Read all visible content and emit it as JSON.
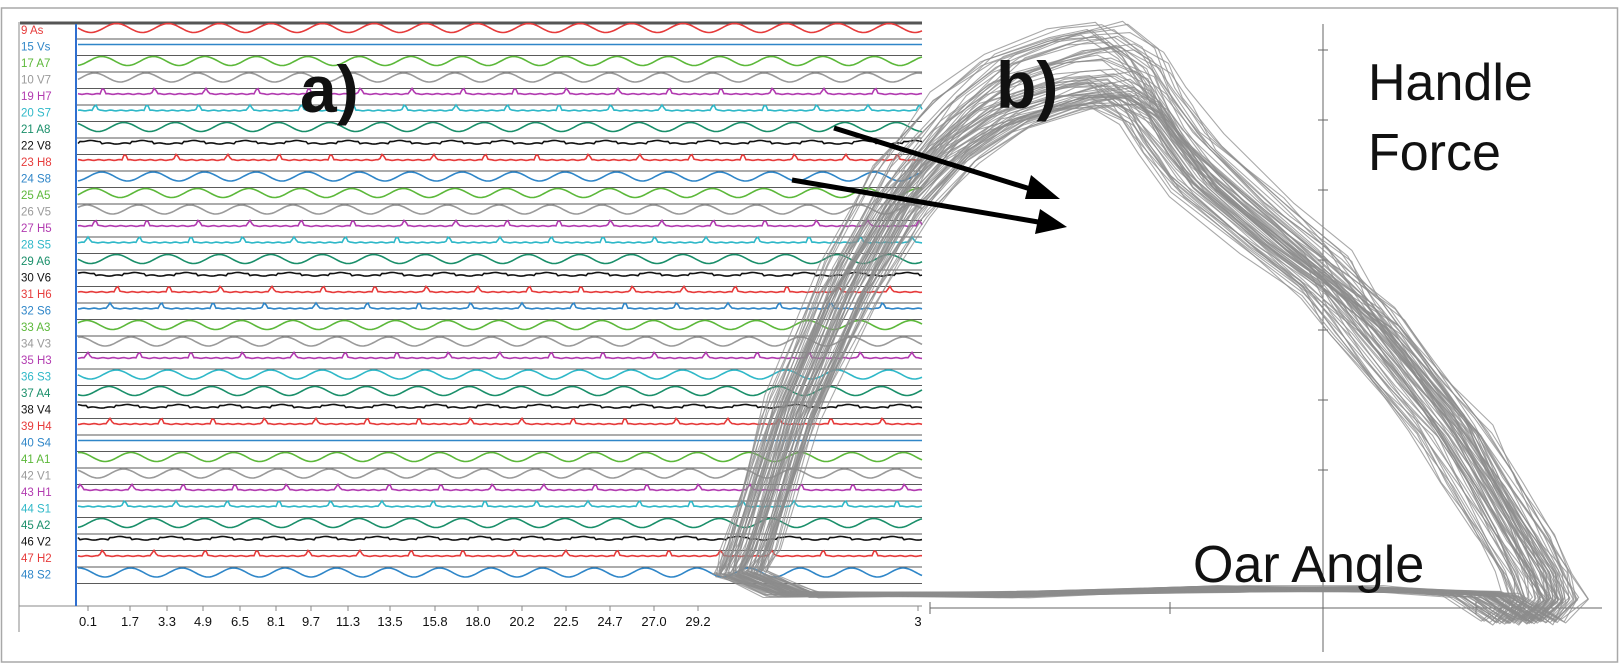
{
  "panel_a": {
    "label": "a)",
    "time_ticks": [
      "0.1",
      "1.7",
      "3.3",
      "4.9",
      "6.5",
      "8.1",
      "9.7",
      "11.3",
      "13.5",
      "15.8",
      "18.0",
      "20.2",
      "22.5",
      "24.7",
      "27.0",
      "29.2",
      "3"
    ]
  },
  "panel_b": {
    "label": "b)",
    "ylabel_line1": "Handle",
    "ylabel_line2": "Force",
    "xlabel": "Oar Angle"
  },
  "chart_data": [
    {
      "type": "line",
      "title": "",
      "xlabel": "",
      "ylabel": "",
      "x_ticks": [
        "0.1",
        "1.7",
        "3.3",
        "4.9",
        "6.5",
        "8.1",
        "9.7",
        "11.3",
        "13.5",
        "15.8",
        "18.0",
        "20.2",
        "22.5",
        "24.7",
        "27.0",
        "29.2",
        "3"
      ],
      "xlim": [
        0.1,
        30.5
      ],
      "grid": false,
      "series": [
        {
          "name": "9 As",
          "color": "#e63b3b",
          "kind": "sine"
        },
        {
          "name": "15 Vs",
          "color": "#2f86c8",
          "kind": "flat"
        },
        {
          "name": "17 A7",
          "color": "#5cb83a",
          "kind": "sine"
        },
        {
          "name": "10 V7",
          "color": "#9a9a9a",
          "kind": "sine"
        },
        {
          "name": "19 H7",
          "color": "#b23bb0",
          "kind": "bump"
        },
        {
          "name": "20 S7",
          "color": "#2fb8c8",
          "kind": "bump"
        },
        {
          "name": "21 A8",
          "color": "#1a8f6a",
          "kind": "sine"
        },
        {
          "name": "22 V8",
          "color": "#111111",
          "kind": "plateau"
        },
        {
          "name": "23 H8",
          "color": "#e63b3b",
          "kind": "bump"
        },
        {
          "name": "24 S8",
          "color": "#2f86c8",
          "kind": "sine"
        },
        {
          "name": "25 A5",
          "color": "#5cb83a",
          "kind": "sine"
        },
        {
          "name": "26 V5",
          "color": "#9a9a9a",
          "kind": "sine"
        },
        {
          "name": "27 H5",
          "color": "#b23bb0",
          "kind": "bump"
        },
        {
          "name": "28 S5",
          "color": "#2fb8c8",
          "kind": "bump"
        },
        {
          "name": "29 A6",
          "color": "#1a8f6a",
          "kind": "sine"
        },
        {
          "name": "30 V6",
          "color": "#111111",
          "kind": "plateau"
        },
        {
          "name": "31 H6",
          "color": "#e63b3b",
          "kind": "bump"
        },
        {
          "name": "32 S6",
          "color": "#2f86c8",
          "kind": "bump"
        },
        {
          "name": "33 A3",
          "color": "#5cb83a",
          "kind": "sine"
        },
        {
          "name": "34 V3",
          "color": "#9a9a9a",
          "kind": "sine"
        },
        {
          "name": "35 H3",
          "color": "#b23bb0",
          "kind": "bump"
        },
        {
          "name": "36 S3",
          "color": "#2fb8c8",
          "kind": "sine"
        },
        {
          "name": "37 A4",
          "color": "#1a8f6a",
          "kind": "sine"
        },
        {
          "name": "38 V4",
          "color": "#111111",
          "kind": "plateau"
        },
        {
          "name": "39 H4",
          "color": "#e63b3b",
          "kind": "bump"
        },
        {
          "name": "40 S4",
          "color": "#2f86c8",
          "kind": "flat"
        },
        {
          "name": "41 A1",
          "color": "#5cb83a",
          "kind": "sine"
        },
        {
          "name": "42 V1",
          "color": "#9a9a9a",
          "kind": "sine"
        },
        {
          "name": "43 H1",
          "color": "#b23bb0",
          "kind": "bump"
        },
        {
          "name": "44 S1",
          "color": "#2fb8c8",
          "kind": "bump"
        },
        {
          "name": "45 A2",
          "color": "#1a8f6a",
          "kind": "sine"
        },
        {
          "name": "46 V2",
          "color": "#111111",
          "kind": "plateau"
        },
        {
          "name": "47 H2",
          "color": "#e63b3b",
          "kind": "bump"
        },
        {
          "name": "48 S2",
          "color": "#2f86c8",
          "kind": "sine"
        }
      ]
    },
    {
      "type": "line",
      "title": "",
      "xlabel": "Oar Angle",
      "ylabel": "Handle Force",
      "grid": false,
      "series": [
        {
          "color": "#8c8c8c",
          "x": [
            -55,
            -54,
            -50,
            -45,
            -40,
            -35,
            -30,
            -24,
            -20,
            -17,
            -15,
            -12,
            -5,
            0,
            4,
            8,
            12,
            15,
            18,
            20,
            21,
            19,
            15,
            5,
            -10,
            -30,
            -50,
            -55
          ],
          "y": [
            0.05,
            0.1,
            0.35,
            0.58,
            0.75,
            0.86,
            0.93,
            0.97,
            0.98,
            0.94,
            0.88,
            0.8,
            0.68,
            0.6,
            0.52,
            0.42,
            0.32,
            0.22,
            0.12,
            0.05,
            0.0,
            -0.04,
            0.01,
            0.02,
            0.02,
            0.01,
            0.01,
            0.05
          ]
        }
      ]
    }
  ]
}
